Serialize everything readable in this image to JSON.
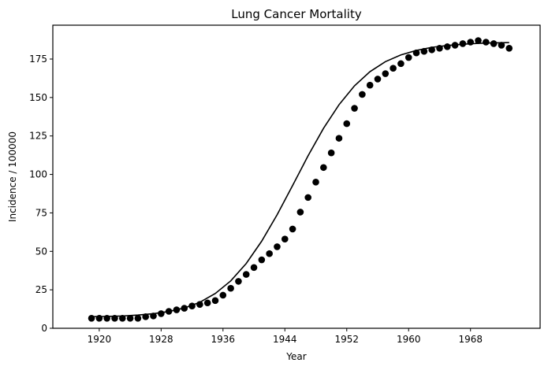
{
  "chart_data": {
    "type": "scatter",
    "title": "Lung Cancer Mortality",
    "xlabel": "Year",
    "ylabel": "Incidence / 100000",
    "xlim": [
      1914,
      1977
    ],
    "ylim": [
      0,
      197
    ],
    "x_ticks": [
      1920,
      1928,
      1936,
      1944,
      1952,
      1960,
      1968
    ],
    "y_ticks": [
      0,
      25,
      50,
      75,
      100,
      125,
      150,
      175
    ],
    "grid": false,
    "series": [
      {
        "style": "points",
        "color": "#000000",
        "x": [
          1919,
          1920,
          1921,
          1922,
          1923,
          1924,
          1925,
          1926,
          1927,
          1928,
          1929,
          1930,
          1931,
          1932,
          1933,
          1934,
          1935,
          1936,
          1937,
          1938,
          1939,
          1940,
          1941,
          1942,
          1943,
          1944,
          1945,
          1946,
          1947,
          1948,
          1949,
          1950,
          1951,
          1952,
          1953,
          1954,
          1955,
          1956,
          1957,
          1958,
          1959,
          1960,
          1961,
          1962,
          1963,
          1964,
          1965,
          1966,
          1967,
          1968,
          1969,
          1970,
          1971,
          1972,
          1973
        ],
        "y": [
          6.5,
          6.5,
          6.5,
          6.5,
          6.5,
          6.5,
          6.5,
          7.5,
          8,
          9.5,
          11,
          12,
          13,
          14.5,
          15.5,
          16.5,
          18,
          21.5,
          26,
          30.5,
          35,
          39.5,
          44.5,
          48.5,
          53,
          58,
          64.5,
          75.5,
          85,
          95,
          104.5,
          114,
          123.5,
          133,
          143,
          152,
          158,
          162,
          165.5,
          169,
          172,
          176,
          179,
          180,
          181,
          182,
          183,
          184,
          185,
          186,
          187,
          186,
          185,
          184,
          182
        ]
      },
      {
        "style": "line",
        "color": "#000000",
        "x": [
          1919,
          1921,
          1923,
          1925,
          1927,
          1929,
          1931,
          1933,
          1935,
          1937,
          1939,
          1941,
          1943,
          1945,
          1947,
          1949,
          1951,
          1953,
          1955,
          1957,
          1959,
          1961,
          1963,
          1965,
          1967,
          1969,
          1971,
          1973
        ],
        "y": [
          7.5,
          7.7,
          8.0,
          8.6,
          9.5,
          10.9,
          13.2,
          16.9,
          22.6,
          30.8,
          42.1,
          56.6,
          73.8,
          92.8,
          112.1,
          130.0,
          145.3,
          157.6,
          166.8,
          173.3,
          177.7,
          180.6,
          182.6,
          183.8,
          184.6,
          185.2,
          185.5,
          185.7
        ]
      }
    ]
  }
}
